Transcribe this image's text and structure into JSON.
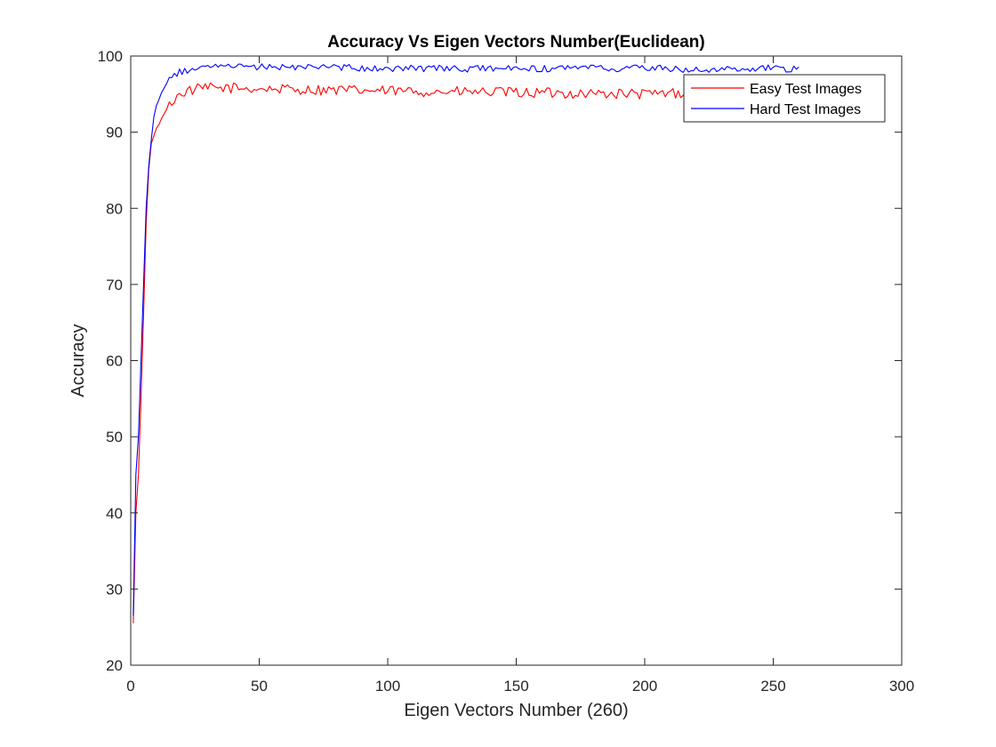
{
  "chart_data": {
    "type": "line",
    "title": "Accuracy Vs Eigen Vectors Number(Euclidean)",
    "xlabel": "Eigen Vectors Number (260)",
    "ylabel": "Accuracy",
    "xlim": [
      0,
      300
    ],
    "ylim": [
      20,
      100
    ],
    "xticks": [
      0,
      50,
      100,
      150,
      200,
      250,
      300
    ],
    "yticks": [
      20,
      30,
      40,
      50,
      60,
      70,
      80,
      90,
      100
    ],
    "grid": false,
    "legend_position": "top-right",
    "x_start": 1,
    "x_end": 260,
    "series": [
      {
        "name": "Easy Test Images",
        "color": "#ff0000",
        "keypoints": [
          [
            1,
            25.5
          ],
          [
            2,
            40
          ],
          [
            3,
            45
          ],
          [
            4,
            55
          ],
          [
            5,
            66
          ],
          [
            6,
            78
          ],
          [
            7,
            85
          ],
          [
            8,
            88.5
          ],
          [
            9,
            89.5
          ],
          [
            10,
            90.5
          ],
          [
            11,
            91
          ],
          [
            12,
            91.8
          ],
          [
            14,
            93
          ],
          [
            16,
            94
          ],
          [
            18,
            94.6
          ],
          [
            20,
            95.2
          ],
          [
            25,
            95.6
          ],
          [
            30,
            95.8
          ],
          [
            40,
            95.8
          ],
          [
            50,
            95.7
          ],
          [
            100,
            95.4
          ],
          [
            150,
            95.2
          ],
          [
            200,
            95.0
          ],
          [
            240,
            95.5
          ],
          [
            260,
            95.8
          ]
        ],
        "noise_amplitude": 0.7
      },
      {
        "name": "Hard Test Images",
        "color": "#0000ff",
        "keypoints": [
          [
            1,
            26.5
          ],
          [
            2,
            45
          ],
          [
            3,
            50
          ],
          [
            4,
            60
          ],
          [
            5,
            70
          ],
          [
            6,
            80
          ],
          [
            7,
            85.5
          ],
          [
            8,
            89
          ],
          [
            9,
            92
          ],
          [
            10,
            93.5
          ],
          [
            11,
            94.3
          ],
          [
            12,
            95.2
          ],
          [
            14,
            96.4
          ],
          [
            16,
            97.2
          ],
          [
            18,
            97.7
          ],
          [
            20,
            98.0
          ],
          [
            25,
            98.3
          ],
          [
            30,
            98.5
          ],
          [
            50,
            98.6
          ],
          [
            100,
            98.4
          ],
          [
            150,
            98.3
          ],
          [
            200,
            98.4
          ],
          [
            230,
            98.2
          ],
          [
            250,
            98.4
          ],
          [
            260,
            98.2
          ]
        ],
        "noise_amplitude": 0.45
      }
    ]
  }
}
